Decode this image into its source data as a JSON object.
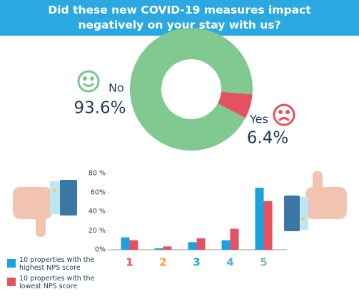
{
  "title": "Did these new COVID-19 measures impact negatively on your stay with us?",
  "chart_data": [
    {
      "type": "pie",
      "categories": [
        "No",
        "Yes"
      ],
      "values": [
        93.6,
        6.4
      ],
      "value_labels": [
        "93.6%",
        "6.4%"
      ],
      "colors": [
        "#80c990",
        "#e5525f"
      ]
    },
    {
      "type": "bar",
      "categories": [
        "1",
        "2",
        "3",
        "4",
        "5"
      ],
      "category_colors": [
        "#e5525f",
        "#f0a030",
        "#1aa3e0",
        "#41b6e6",
        "#7cc58d"
      ],
      "series": [
        {
          "name": "10 properties with the highest NPS score",
          "color": "#1aa3e0",
          "values": [
            13,
            1.5,
            8,
            10,
            65
          ]
        },
        {
          "name": "10 properties with the lowest NPS score",
          "color": "#e5525f",
          "values": [
            10,
            3.5,
            12,
            22,
            51
          ]
        }
      ],
      "ylim": [
        0,
        80
      ],
      "yticks": [
        {
          "value": 0,
          "label": "0%"
        },
        {
          "value": 20,
          "label": "20 %"
        },
        {
          "value": 40,
          "label": "40 %"
        },
        {
          "value": 60,
          "label": "60%"
        },
        {
          "value": 80,
          "label": "80 %"
        }
      ],
      "grid": false
    }
  ]
}
